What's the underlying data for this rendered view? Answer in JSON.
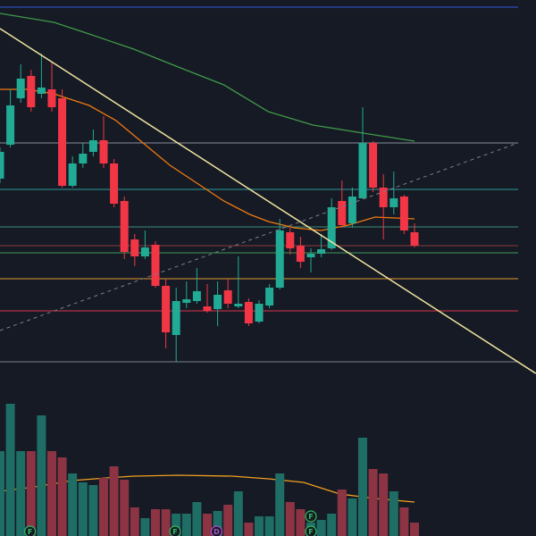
{
  "chart_data": {
    "type": "candlestick",
    "open": [
      220,
      258,
      310,
      335,
      315,
      320,
      310,
      212,
      237,
      250,
      263,
      237,
      195,
      152,
      133,
      146,
      100,
      45,
      81,
      83,
      77,
      74,
      95,
      77,
      82,
      60,
      78,
      98,
      160,
      145,
      132,
      136,
      142,
      195,
      170,
      198,
      260,
      210,
      188,
      200,
      160
    ],
    "high": [
      255,
      320,
      348,
      342,
      360,
      350,
      320,
      245,
      260,
      275,
      290,
      242,
      200,
      158,
      162,
      150,
      108,
      98,
      105,
      120,
      102,
      105,
      108,
      133,
      86,
      84,
      102,
      175,
      165,
      155,
      142,
      158,
      198,
      218,
      210,
      300,
      262,
      225,
      228,
      202,
      170
    ],
    "low": [
      215,
      255,
      305,
      295,
      310,
      295,
      210,
      210,
      232,
      245,
      232,
      188,
      130,
      122,
      130,
      98,
      30,
      15,
      75,
      80,
      70,
      55,
      75,
      75,
      55,
      58,
      75,
      96,
      135,
      120,
      115,
      132,
      140,
      165,
      165,
      198,
      205,
      152,
      180,
      158,
      143
    ],
    "close": [
      250,
      302,
      332,
      300,
      322,
      300,
      212,
      237,
      248,
      263,
      237,
      192,
      138,
      133,
      143,
      100,
      48,
      83,
      85,
      94,
      72,
      90,
      80,
      80,
      58,
      80,
      98,
      162,
      142,
      127,
      136,
      141,
      188,
      168,
      200,
      260,
      210,
      188,
      198,
      162,
      145
    ],
    "volume": [
      95,
      148,
      95,
      95,
      135,
      95,
      88,
      70,
      60,
      57,
      65,
      78,
      63,
      32,
      20,
      30,
      30,
      25,
      25,
      38,
      25,
      28,
      35,
      50,
      15,
      22,
      22,
      70,
      38,
      30,
      15,
      18,
      25,
      52,
      42,
      110,
      75,
      70,
      50,
      32,
      15
    ],
    "ylim": [
      0,
      420
    ],
    "volume_ylim": [
      0,
      150
    ],
    "up_color": "#22ab94",
    "down_color": "#f23645",
    "volume_up_color": "#1f6e66",
    "volume_down_color": "#8c3444",
    "levels": [
      {
        "value": 412,
        "color": "#3355dd"
      },
      {
        "value": 260,
        "color": "#8a8f9a"
      },
      {
        "value": 208,
        "color": "#2a9d9a"
      },
      {
        "value": 166,
        "color": "#3c8f78"
      },
      {
        "value": 145,
        "color": "#8a3a3a"
      },
      {
        "value": 137,
        "color": "#3f9a55"
      },
      {
        "value": 108,
        "color": "#e39a2a"
      },
      {
        "value": 72,
        "color": "#d8364a"
      },
      {
        "value": 15,
        "color": "#7a7f8a"
      }
    ],
    "trendlines": [
      {
        "x": [
          0,
          51.7
        ],
        "values": [
          388,
          2
        ],
        "color": "#f2e6a0",
        "dashed": false
      },
      {
        "x": [
          0,
          50
        ],
        "values": [
          50,
          260
        ],
        "color": "#7a7f8a",
        "dashed": true
      }
    ],
    "series": [
      {
        "color": "#3f9a48",
        "x": [
          0,
          5.2,
          8.6,
          12.9,
          17.2,
          21.6,
          25.9,
          30.2,
          34.5,
          40
        ],
        "values": [
          405,
          395,
          382,
          365,
          345,
          325,
          295,
          280,
          272,
          262
        ]
      },
      {
        "color": "#f07a10",
        "x": [
          0,
          2.6,
          5.2,
          8.6,
          11.2,
          13.8,
          16.4,
          19,
          21.6,
          24.1,
          25.9,
          28.4,
          31,
          33.6,
          36.2,
          40
        ],
        "values": [
          320,
          320,
          315,
          302,
          285,
          260,
          235,
          215,
          195,
          180,
          172,
          165,
          162,
          168,
          177,
          175
        ]
      },
      {
        "color": "#f0a020",
        "axis": "volume",
        "x": [
          0,
          3.4,
          6.9,
          10.3,
          12.9,
          17.2,
          22.4,
          25.9,
          29.3,
          32.8,
          36.2,
          40
        ],
        "values": [
          50,
          55,
          62,
          65,
          67,
          68,
          67,
          64,
          60,
          47,
          42,
          38
        ]
      }
    ],
    "events": [
      {
        "label": "F",
        "x": 2.9,
        "color": "#2fbf60"
      },
      {
        "label": "F",
        "x": 16.9,
        "color": "#2fbf60"
      },
      {
        "label": "D",
        "x": 20.9,
        "color": "#b050d0"
      },
      {
        "label": "F",
        "x": 30,
        "color": "#2fbf60"
      },
      {
        "label": "F",
        "x": 30,
        "color": "#2fbf60"
      }
    ]
  }
}
